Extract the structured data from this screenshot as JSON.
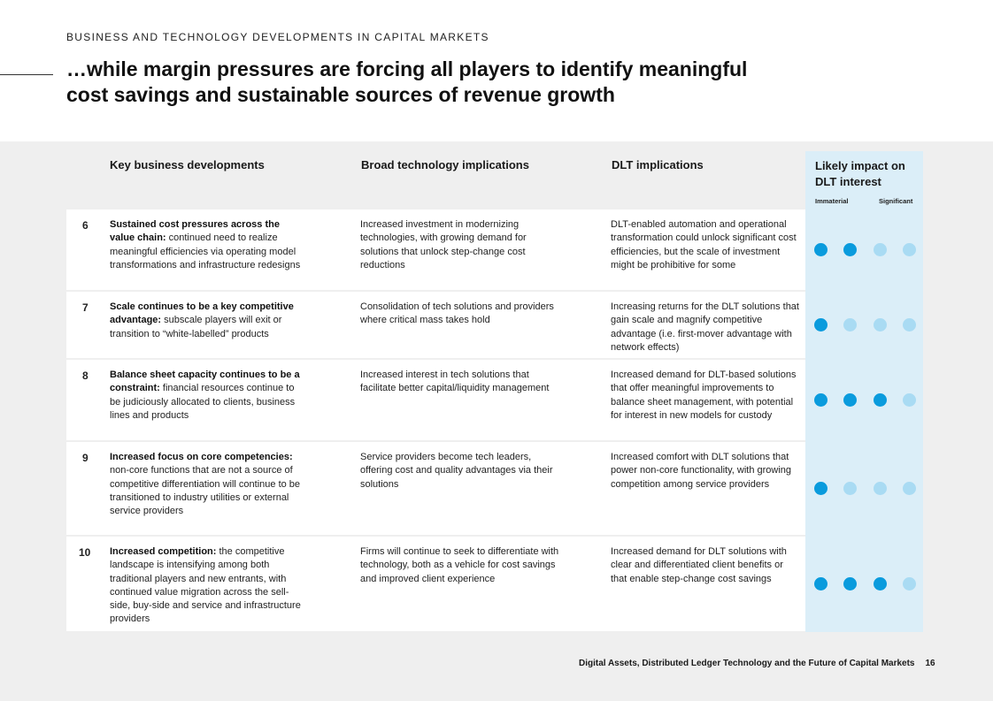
{
  "header": {
    "eyebrow": "BUSINESS AND TECHNOLOGY DEVELOPMENTS IN CAPITAL MARKETS",
    "title": "…while margin pressures are forcing all players to identify meaningful cost savings and sustainable sources of revenue growth"
  },
  "table": {
    "col_headers": [
      "Key business developments",
      "Broad technology implications",
      "DLT implications"
    ],
    "impact_header": "Likely impact on DLT interest",
    "scale_low": "Immaterial",
    "scale_high": "Significant",
    "rows": [
      {
        "num": "6",
        "dev_bold": "Sustained cost pressures across the value chain:",
        "dev_rest": " continued need to realize meaningful efficiencies via operating model transformations and infrastructure redesigns",
        "tech": "Increased investment in modernizing technologies, with growing demand for solutions that unlock step-change cost reductions",
        "dlt": "DLT-enabled automation and operational transformation could unlock significant cost efficiencies, but the scale of investment might be prohibitive for some",
        "impact": 2
      },
      {
        "num": "7",
        "dev_bold": "Scale continues to be a key competitive advantage:",
        "dev_rest": " subscale players will exit or transition to “white-labelled” products",
        "tech": "Consolidation of tech solutions and providers where critical mass takes hold",
        "dlt": "Increasing returns for the DLT solutions that gain scale and magnify competitive advantage (i.e. first-mover advantage with network effects)",
        "impact": 1
      },
      {
        "num": "8",
        "dev_bold": "Balance sheet capacity continues to be a constraint:",
        "dev_rest": " financial resources continue to be judiciously allocated to clients, business lines and products",
        "tech": "Increased interest in tech solutions that facilitate better capital/liquidity management",
        "dlt": "Increased demand for DLT-based solutions that offer meaningful improvements to balance sheet management, with potential for interest in new models for custody",
        "impact": 3
      },
      {
        "num": "9",
        "dev_bold": "Increased focus on core competencies:",
        "dev_rest": " non-core functions that are not a source of competitive differentiation will continue to be transitioned to industry utilities or external service providers",
        "tech": "Service providers become tech leaders, offering cost and quality advantages via their solutions",
        "dlt": "Increased comfort with DLT solutions that power non-core functionality, with growing competition among service providers",
        "impact": 1
      },
      {
        "num": "10",
        "dev_bold": "Increased competition:",
        "dev_rest": " the competitive landscape is intensifying among both traditional players and new entrants, with continued value migration across the sell-side, buy-side and service and infrastructure providers",
        "tech": "Firms will continue to seek to differentiate with technology, both as a vehicle for cost savings and improved client experience",
        "dlt": "Increased demand for DLT solutions with clear and differentiated client benefits or that enable step-change cost savings",
        "impact": 3
      }
    ]
  },
  "footer": {
    "text": "Digital Assets, Distributed Ledger Technology and the Future of Capital Markets",
    "page": "16"
  },
  "colors": {
    "dot_active": "#0a9bdd",
    "dot_inactive": "#a9dbf3",
    "impact_bg": "#dbeef8",
    "panel_bg": "#efefef"
  }
}
